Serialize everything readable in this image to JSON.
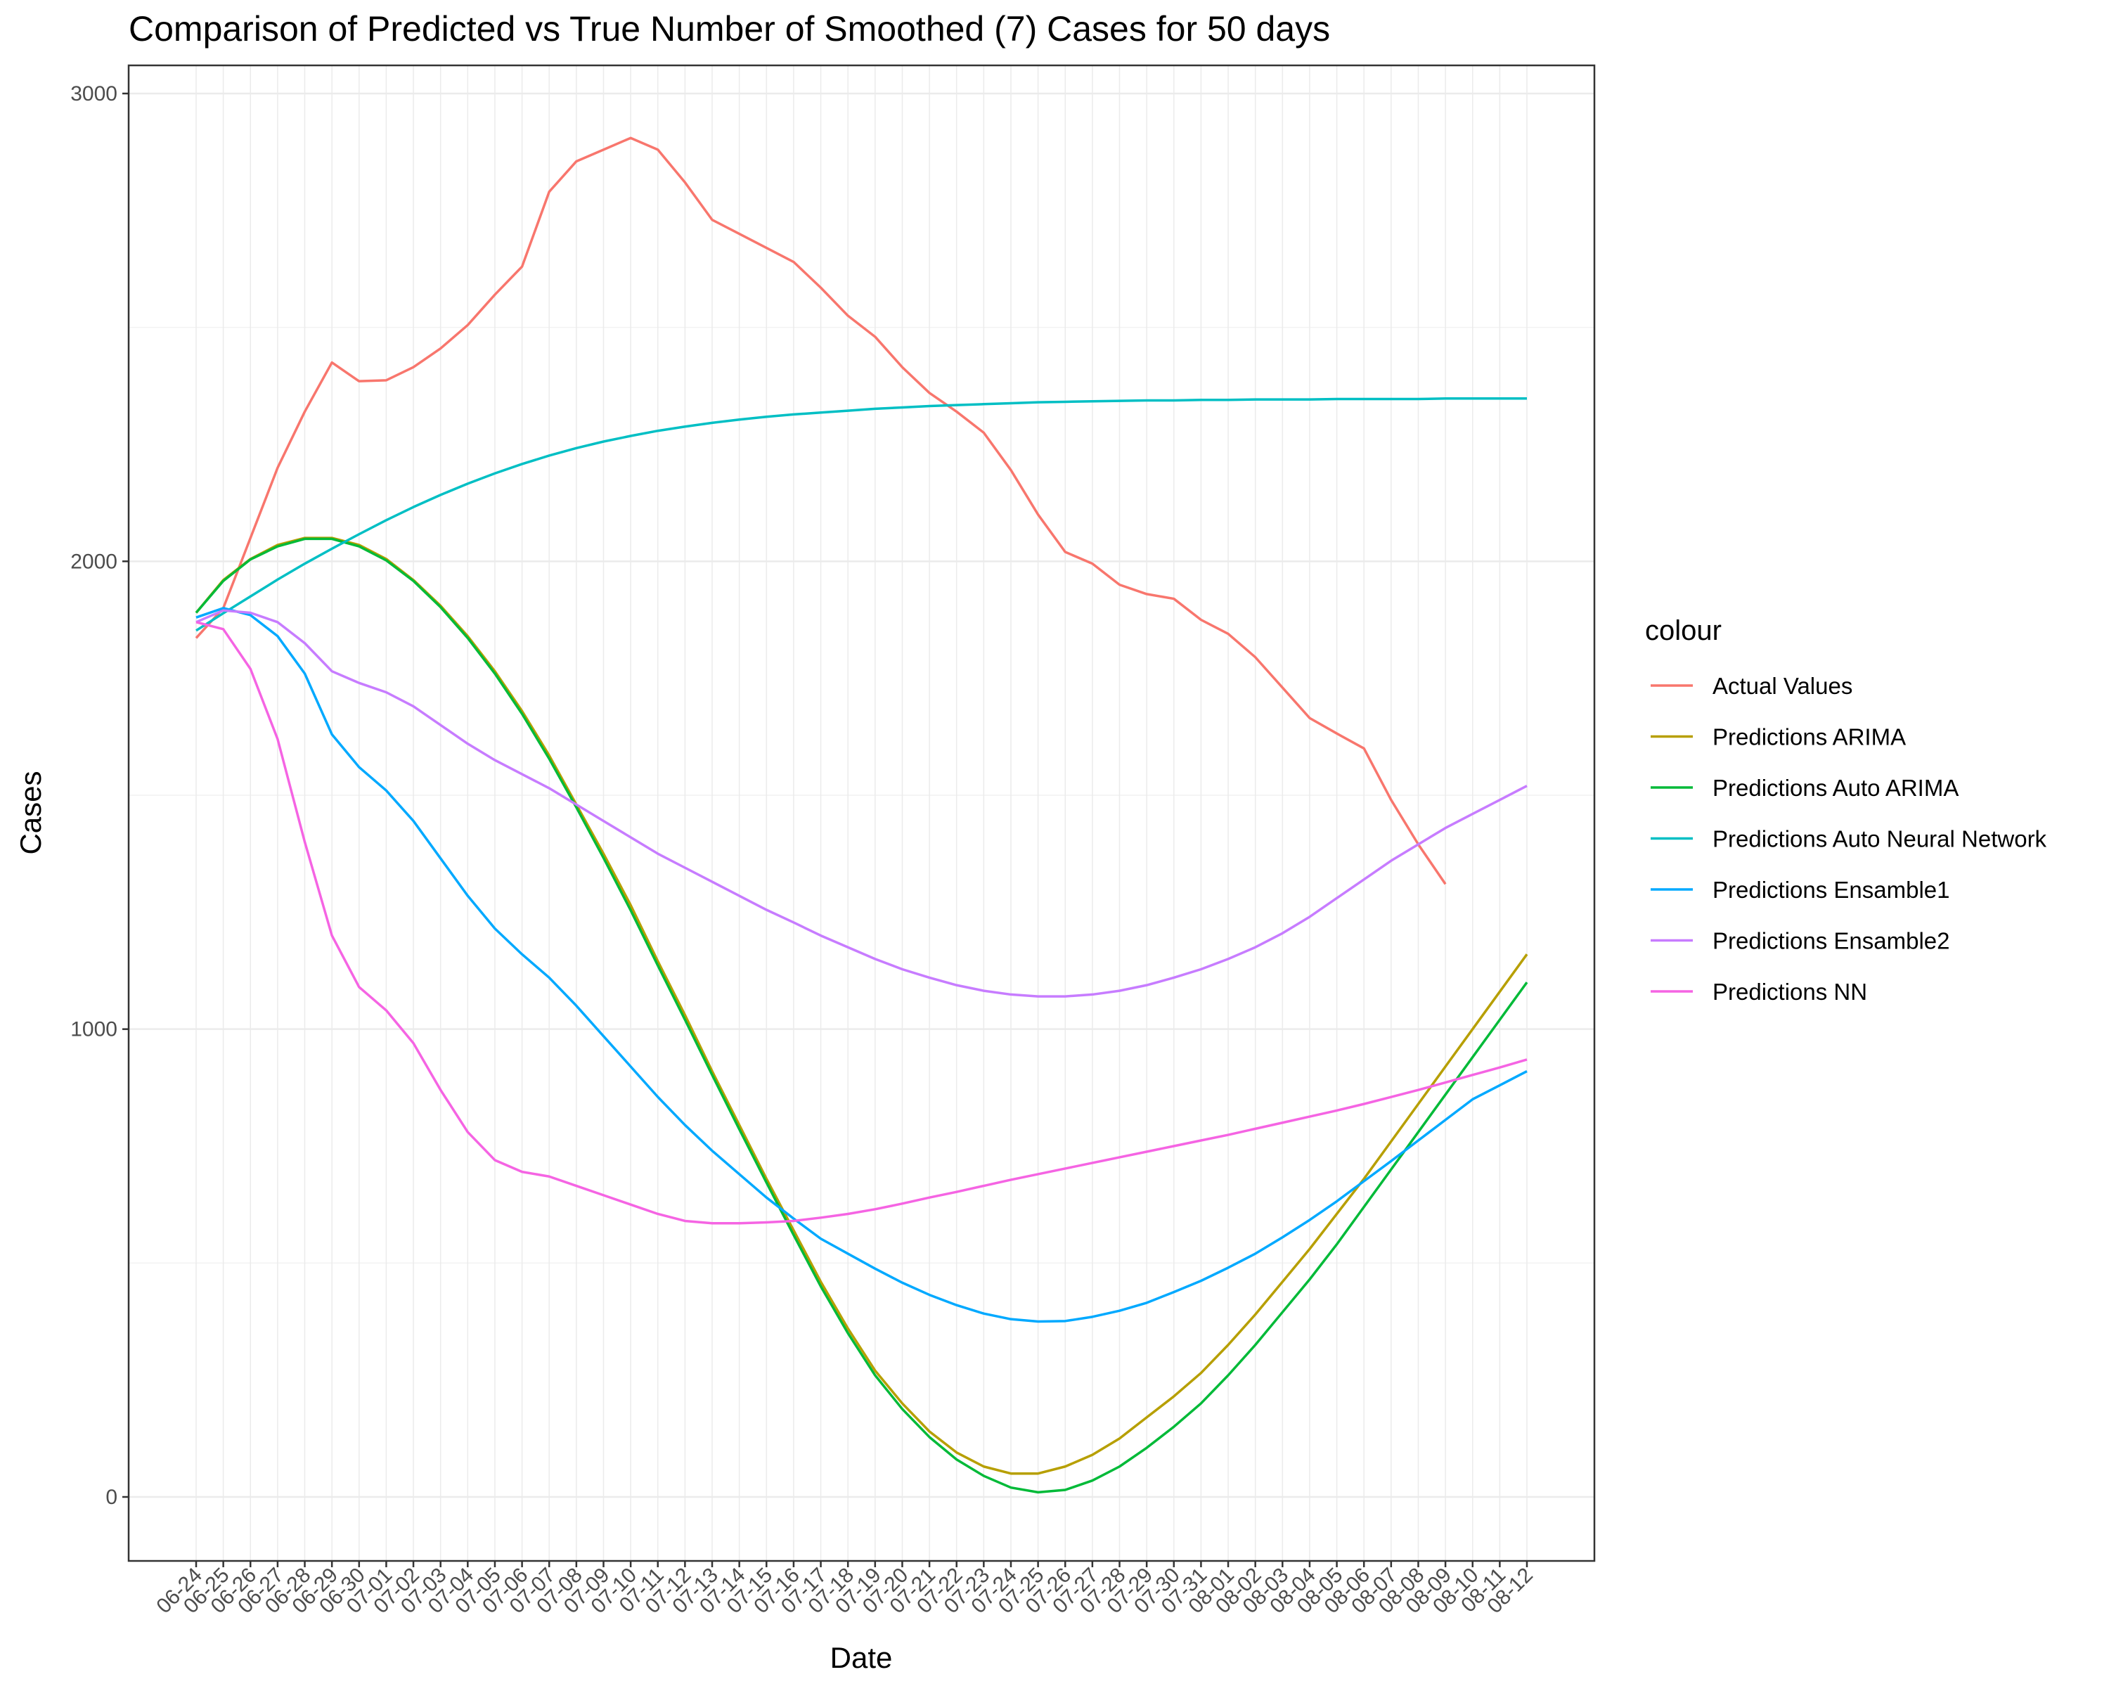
{
  "chart_data": {
    "type": "line",
    "title": "Comparison of Predicted vs True Number of Smoothed (7) Cases for 50 days",
    "xlabel": "Date",
    "ylabel": "Cases",
    "ylim": [
      -130,
      3000
    ],
    "y_ticks": [
      0,
      1000,
      2000,
      3000
    ],
    "grid": true,
    "legend_title": "colour",
    "legend_position": "right",
    "x": [
      "06-24",
      "06-25",
      "06-26",
      "06-27",
      "06-28",
      "06-29",
      "06-30",
      "07-01",
      "07-02",
      "07-03",
      "07-04",
      "07-05",
      "07-06",
      "07-07",
      "07-08",
      "07-09",
      "07-10",
      "07-11",
      "07-12",
      "07-13",
      "07-14",
      "07-15",
      "07-16",
      "07-17",
      "07-18",
      "07-19",
      "07-20",
      "07-21",
      "07-22",
      "07-23",
      "07-24",
      "07-25",
      "07-26",
      "07-27",
      "07-28",
      "07-29",
      "07-30",
      "07-31",
      "08-01",
      "08-02",
      "08-03",
      "08-04",
      "08-05",
      "08-06",
      "08-07",
      "08-08",
      "08-09",
      "08-10",
      "08-11",
      "08-12"
    ],
    "series": [
      {
        "name": "Actual Values",
        "color": "#F8766D",
        "values": [
          1836,
          1900,
          2050,
          2200,
          2320,
          2425,
          2385,
          2387,
          2415,
          2455,
          2505,
          2570,
          2630,
          2790,
          2855,
          2880,
          2905,
          2880,
          2810,
          2730,
          2700,
          2670,
          2640,
          2585,
          2525,
          2480,
          2415,
          2360,
          2320,
          2275,
          2195,
          2100,
          2020,
          1995,
          1950,
          1930,
          1920,
          1875,
          1845,
          1795,
          1730,
          1665,
          1632,
          1600,
          1490,
          1395,
          1310,
          null,
          null,
          null
        ]
      },
      {
        "name": "Predictions ARIMA",
        "color": "#B79F00",
        "values": [
          1890,
          1960,
          2005,
          2035,
          2050,
          2050,
          2035,
          2005,
          1960,
          1905,
          1840,
          1765,
          1680,
          1585,
          1480,
          1375,
          1265,
          1145,
          1030,
          910,
          795,
          680,
          570,
          460,
          360,
          270,
          200,
          140,
          95,
          65,
          50,
          50,
          65,
          90,
          125,
          170,
          215,
          265,
          325,
          390,
          460,
          530,
          605,
          680,
          760,
          840,
          920,
          1000,
          1080,
          1160
        ]
      },
      {
        "name": "Predictions Auto ARIMA",
        "color": "#00BA38",
        "values": [
          1890,
          1958,
          2004,
          2032,
          2048,
          2048,
          2032,
          2002,
          1958,
          1902,
          1836,
          1760,
          1674,
          1578,
          1474,
          1366,
          1254,
          1136,
          1020,
          902,
          786,
          672,
          560,
          450,
          350,
          260,
          188,
          128,
          80,
          45,
          20,
          10,
          15,
          35,
          65,
          105,
          150,
          200,
          260,
          325,
          395,
          465,
          540,
          620,
          700,
          780,
          860,
          940,
          1020,
          1100
        ]
      },
      {
        "name": "Predictions Auto Neural Network",
        "color": "#00BFC4",
        "values": [
          1852,
          1889,
          1925,
          1961,
          1995,
          2027,
          2058,
          2088,
          2116,
          2142,
          2166,
          2188,
          2208,
          2226,
          2242,
          2256,
          2268,
          2279,
          2288,
          2296,
          2303,
          2309,
          2314,
          2318,
          2322,
          2326,
          2329,
          2332,
          2334,
          2336,
          2338,
          2340,
          2341,
          2342,
          2343,
          2344,
          2344,
          2345,
          2345,
          2346,
          2346,
          2346,
          2347,
          2347,
          2347,
          2347,
          2348,
          2348,
          2348,
          2348
        ]
      },
      {
        "name": "Predictions Ensamble1",
        "color": "#00A9FF",
        "values": [
          1880,
          1900,
          1885,
          1840,
          1760,
          1630,
          1560,
          1510,
          1445,
          1365,
          1285,
          1215,
          1160,
          1110,
          1050,
          985,
          920,
          855,
          795,
          740,
          690,
          640,
          595,
          552,
          520,
          488,
          458,
          432,
          410,
          392,
          380,
          375,
          376,
          385,
          398,
          415,
          438,
          462,
          490,
          520,
          555,
          592,
          632,
          675,
          718,
          762,
          806,
          850,
          880,
          910
        ]
      },
      {
        "name": "Predictions Ensamble2",
        "color": "#C77CFF",
        "values": [
          1870,
          1895,
          1890,
          1870,
          1825,
          1765,
          1740,
          1720,
          1690,
          1650,
          1610,
          1575,
          1545,
          1515,
          1480,
          1445,
          1410,
          1375,
          1345,
          1315,
          1285,
          1255,
          1228,
          1200,
          1175,
          1150,
          1128,
          1110,
          1094,
          1082,
          1074,
          1070,
          1070,
          1074,
          1082,
          1094,
          1110,
          1128,
          1150,
          1175,
          1205,
          1240,
          1280,
          1320,
          1360,
          1395,
          1430,
          1460,
          1490,
          1520
        ]
      },
      {
        "name": "Predictions NN",
        "color": "#F564E3",
        "values": [
          1870,
          1855,
          1770,
          1620,
          1400,
          1200,
          1090,
          1040,
          970,
          870,
          780,
          720,
          695,
          685,
          665,
          645,
          625,
          605,
          590,
          585,
          585,
          587,
          590,
          597,
          605,
          615,
          627,
          640,
          652,
          665,
          678,
          690,
          702,
          714,
          726,
          738,
          750,
          762,
          774,
          787,
          800,
          813,
          826,
          840,
          855,
          870,
          886,
          902,
          918,
          935
        ]
      }
    ]
  }
}
